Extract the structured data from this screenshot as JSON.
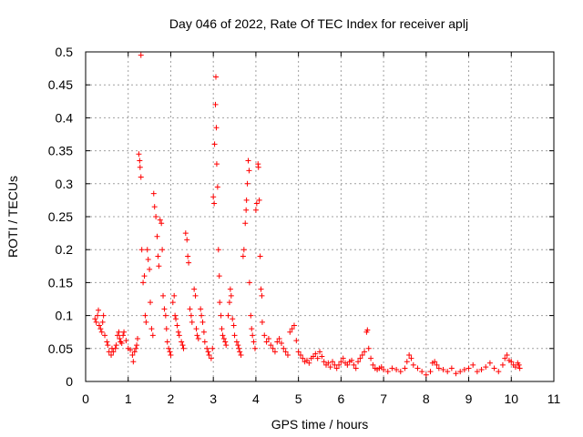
{
  "chart_data": {
    "type": "scatter",
    "title": "Day 046 of 2022, Rate Of TEC Index for receiver aplj",
    "xlabel": "GPS time / hours",
    "ylabel": "ROTI / TECUs",
    "xlim": [
      0,
      11
    ],
    "ylim": [
      0,
      0.5
    ],
    "xticks": [
      0,
      1,
      2,
      3,
      4,
      5,
      6,
      7,
      8,
      9,
      10,
      11
    ],
    "yticks": [
      0,
      0.05,
      0.1,
      0.15,
      0.2,
      0.25,
      0.3,
      0.35,
      0.4,
      0.45,
      0.5
    ],
    "ytick_labels": [
      "0",
      "0.05",
      "0.1",
      "0.15",
      "0.2",
      "0.25",
      "0.3",
      "0.35",
      "0.4",
      "0.45",
      "0.5"
    ],
    "grid": true,
    "marker": "+",
    "color": "#ff0000",
    "series": [
      {
        "name": "ROTI",
        "points": [
          [
            0.22,
            0.095
          ],
          [
            0.25,
            0.09
          ],
          [
            0.28,
            0.1
          ],
          [
            0.3,
            0.108
          ],
          [
            0.32,
            0.085
          ],
          [
            0.35,
            0.08
          ],
          [
            0.38,
            0.075
          ],
          [
            0.4,
            0.09
          ],
          [
            0.42,
            0.1
          ],
          [
            0.45,
            0.07
          ],
          [
            0.5,
            0.06
          ],
          [
            0.52,
            0.055
          ],
          [
            0.55,
            0.045
          ],
          [
            0.6,
            0.04
          ],
          [
            0.62,
            0.05
          ],
          [
            0.65,
            0.045
          ],
          [
            0.7,
            0.05
          ],
          [
            0.72,
            0.055
          ],
          [
            0.75,
            0.07
          ],
          [
            0.78,
            0.075
          ],
          [
            0.8,
            0.065
          ],
          [
            0.82,
            0.06
          ],
          [
            0.85,
            0.058
          ],
          [
            0.88,
            0.07
          ],
          [
            0.9,
            0.075
          ],
          [
            0.95,
            0.062
          ],
          [
            1.0,
            0.05
          ],
          [
            1.05,
            0.048
          ],
          [
            1.1,
            0.04
          ],
          [
            1.12,
            0.03
          ],
          [
            1.15,
            0.045
          ],
          [
            1.18,
            0.05
          ],
          [
            1.2,
            0.055
          ],
          [
            1.22,
            0.065
          ],
          [
            1.25,
            0.345
          ],
          [
            1.27,
            0.335
          ],
          [
            1.28,
            0.325
          ],
          [
            1.3,
            0.31
          ],
          [
            1.3,
            0.495
          ],
          [
            1.32,
            0.2
          ],
          [
            1.35,
            0.15
          ],
          [
            1.38,
            0.16
          ],
          [
            1.4,
            0.1
          ],
          [
            1.42,
            0.09
          ],
          [
            1.45,
            0.2
          ],
          [
            1.47,
            0.185
          ],
          [
            1.5,
            0.17
          ],
          [
            1.52,
            0.12
          ],
          [
            1.55,
            0.08
          ],
          [
            1.58,
            0.07
          ],
          [
            1.6,
            0.285
          ],
          [
            1.62,
            0.265
          ],
          [
            1.65,
            0.25
          ],
          [
            1.68,
            0.22
          ],
          [
            1.7,
            0.19
          ],
          [
            1.72,
            0.175
          ],
          [
            1.75,
            0.245
          ],
          [
            1.78,
            0.24
          ],
          [
            1.8,
            0.2
          ],
          [
            1.82,
            0.13
          ],
          [
            1.85,
            0.11
          ],
          [
            1.88,
            0.1
          ],
          [
            1.9,
            0.08
          ],
          [
            1.92,
            0.06
          ],
          [
            1.95,
            0.05
          ],
          [
            1.98,
            0.045
          ],
          [
            2.0,
            0.04
          ],
          [
            2.05,
            0.12
          ],
          [
            2.08,
            0.13
          ],
          [
            2.1,
            0.1
          ],
          [
            2.12,
            0.095
          ],
          [
            2.15,
            0.085
          ],
          [
            2.18,
            0.075
          ],
          [
            2.2,
            0.07
          ],
          [
            2.25,
            0.06
          ],
          [
            2.28,
            0.055
          ],
          [
            2.3,
            0.05
          ],
          [
            2.35,
            0.225
          ],
          [
            2.38,
            0.215
          ],
          [
            2.4,
            0.19
          ],
          [
            2.42,
            0.18
          ],
          [
            2.45,
            0.11
          ],
          [
            2.48,
            0.1
          ],
          [
            2.5,
            0.09
          ],
          [
            2.55,
            0.14
          ],
          [
            2.58,
            0.13
          ],
          [
            2.6,
            0.08
          ],
          [
            2.62,
            0.07
          ],
          [
            2.65,
            0.065
          ],
          [
            2.7,
            0.11
          ],
          [
            2.72,
            0.1
          ],
          [
            2.75,
            0.09
          ],
          [
            2.78,
            0.075
          ],
          [
            2.8,
            0.06
          ],
          [
            2.85,
            0.05
          ],
          [
            2.88,
            0.045
          ],
          [
            2.9,
            0.04
          ],
          [
            2.95,
            0.035
          ],
          [
            2.98,
            0.05
          ],
          [
            3.0,
            0.28
          ],
          [
            3.02,
            0.27
          ],
          [
            3.03,
            0.36
          ],
          [
            3.05,
            0.42
          ],
          [
            3.06,
            0.462
          ],
          [
            3.07,
            0.385
          ],
          [
            3.08,
            0.33
          ],
          [
            3.1,
            0.295
          ],
          [
            3.12,
            0.2
          ],
          [
            3.14,
            0.16
          ],
          [
            3.15,
            0.12
          ],
          [
            3.18,
            0.1
          ],
          [
            3.2,
            0.08
          ],
          [
            3.22,
            0.07
          ],
          [
            3.25,
            0.065
          ],
          [
            3.28,
            0.06
          ],
          [
            3.3,
            0.055
          ],
          [
            3.35,
            0.1
          ],
          [
            3.38,
            0.12
          ],
          [
            3.4,
            0.14
          ],
          [
            3.42,
            0.13
          ],
          [
            3.45,
            0.095
          ],
          [
            3.48,
            0.085
          ],
          [
            3.5,
            0.07
          ],
          [
            3.55,
            0.06
          ],
          [
            3.58,
            0.055
          ],
          [
            3.6,
            0.05
          ],
          [
            3.62,
            0.045
          ],
          [
            3.65,
            0.04
          ],
          [
            3.7,
            0.19
          ],
          [
            3.72,
            0.2
          ],
          [
            3.75,
            0.24
          ],
          [
            3.77,
            0.26
          ],
          [
            3.78,
            0.275
          ],
          [
            3.8,
            0.3
          ],
          [
            3.82,
            0.335
          ],
          [
            3.84,
            0.32
          ],
          [
            3.85,
            0.15
          ],
          [
            3.88,
            0.1
          ],
          [
            3.9,
            0.08
          ],
          [
            3.92,
            0.07
          ],
          [
            3.95,
            0.06
          ],
          [
            3.98,
            0.05
          ],
          [
            4.0,
            0.26
          ],
          [
            4.02,
            0.27
          ],
          [
            4.05,
            0.33
          ],
          [
            4.06,
            0.325
          ],
          [
            4.08,
            0.275
          ],
          [
            4.1,
            0.19
          ],
          [
            4.12,
            0.14
          ],
          [
            4.14,
            0.13
          ],
          [
            4.15,
            0.09
          ],
          [
            4.2,
            0.07
          ],
          [
            4.25,
            0.06
          ],
          [
            4.3,
            0.065
          ],
          [
            4.35,
            0.055
          ],
          [
            4.4,
            0.05
          ],
          [
            4.45,
            0.045
          ],
          [
            4.5,
            0.06
          ],
          [
            4.55,
            0.065
          ],
          [
            4.6,
            0.058
          ],
          [
            4.65,
            0.05
          ],
          [
            4.7,
            0.045
          ],
          [
            4.75,
            0.04
          ],
          [
            4.8,
            0.075
          ],
          [
            4.85,
            0.08
          ],
          [
            4.9,
            0.085
          ],
          [
            4.95,
            0.062
          ],
          [
            5.0,
            0.045
          ],
          [
            5.05,
            0.04
          ],
          [
            5.1,
            0.035
          ],
          [
            5.15,
            0.03
          ],
          [
            5.2,
            0.032
          ],
          [
            5.25,
            0.028
          ],
          [
            5.3,
            0.035
          ],
          [
            5.35,
            0.038
          ],
          [
            5.4,
            0.042
          ],
          [
            5.45,
            0.035
          ],
          [
            5.5,
            0.045
          ],
          [
            5.55,
            0.038
          ],
          [
            5.6,
            0.03
          ],
          [
            5.65,
            0.025
          ],
          [
            5.7,
            0.028
          ],
          [
            5.75,
            0.022
          ],
          [
            5.8,
            0.03
          ],
          [
            5.85,
            0.025
          ],
          [
            5.9,
            0.02
          ],
          [
            5.95,
            0.025
          ],
          [
            6.0,
            0.03
          ],
          [
            6.05,
            0.035
          ],
          [
            6.1,
            0.028
          ],
          [
            6.15,
            0.025
          ],
          [
            6.2,
            0.03
          ],
          [
            6.25,
            0.032
          ],
          [
            6.3,
            0.025
          ],
          [
            6.35,
            0.02
          ],
          [
            6.4,
            0.03
          ],
          [
            6.45,
            0.035
          ],
          [
            6.5,
            0.04
          ],
          [
            6.55,
            0.045
          ],
          [
            6.6,
            0.075
          ],
          [
            6.62,
            0.078
          ],
          [
            6.65,
            0.05
          ],
          [
            6.7,
            0.035
          ],
          [
            6.75,
            0.025
          ],
          [
            6.8,
            0.02
          ],
          [
            6.85,
            0.018
          ],
          [
            6.9,
            0.02
          ],
          [
            6.95,
            0.022
          ],
          [
            7.0,
            0.018
          ],
          [
            7.1,
            0.015
          ],
          [
            7.2,
            0.02
          ],
          [
            7.3,
            0.018
          ],
          [
            7.4,
            0.015
          ],
          [
            7.5,
            0.02
          ],
          [
            7.55,
            0.03
          ],
          [
            7.6,
            0.04
          ],
          [
            7.65,
            0.035
          ],
          [
            7.7,
            0.025
          ],
          [
            7.8,
            0.02
          ],
          [
            7.9,
            0.015
          ],
          [
            8.0,
            0.01
          ],
          [
            8.1,
            0.015
          ],
          [
            8.15,
            0.028
          ],
          [
            8.2,
            0.03
          ],
          [
            8.25,
            0.025
          ],
          [
            8.3,
            0.02
          ],
          [
            8.4,
            0.018
          ],
          [
            8.5,
            0.015
          ],
          [
            8.6,
            0.02
          ],
          [
            8.7,
            0.012
          ],
          [
            8.8,
            0.015
          ],
          [
            8.9,
            0.018
          ],
          [
            9.0,
            0.02
          ],
          [
            9.1,
            0.025
          ],
          [
            9.2,
            0.015
          ],
          [
            9.3,
            0.018
          ],
          [
            9.4,
            0.022
          ],
          [
            9.5,
            0.028
          ],
          [
            9.6,
            0.02
          ],
          [
            9.7,
            0.015
          ],
          [
            9.8,
            0.025
          ],
          [
            9.85,
            0.035
          ],
          [
            9.9,
            0.04
          ],
          [
            9.95,
            0.032
          ],
          [
            10.0,
            0.03
          ],
          [
            10.05,
            0.025
          ],
          [
            10.1,
            0.022
          ],
          [
            10.15,
            0.028
          ],
          [
            10.18,
            0.025
          ],
          [
            10.2,
            0.02
          ]
        ]
      }
    ]
  }
}
